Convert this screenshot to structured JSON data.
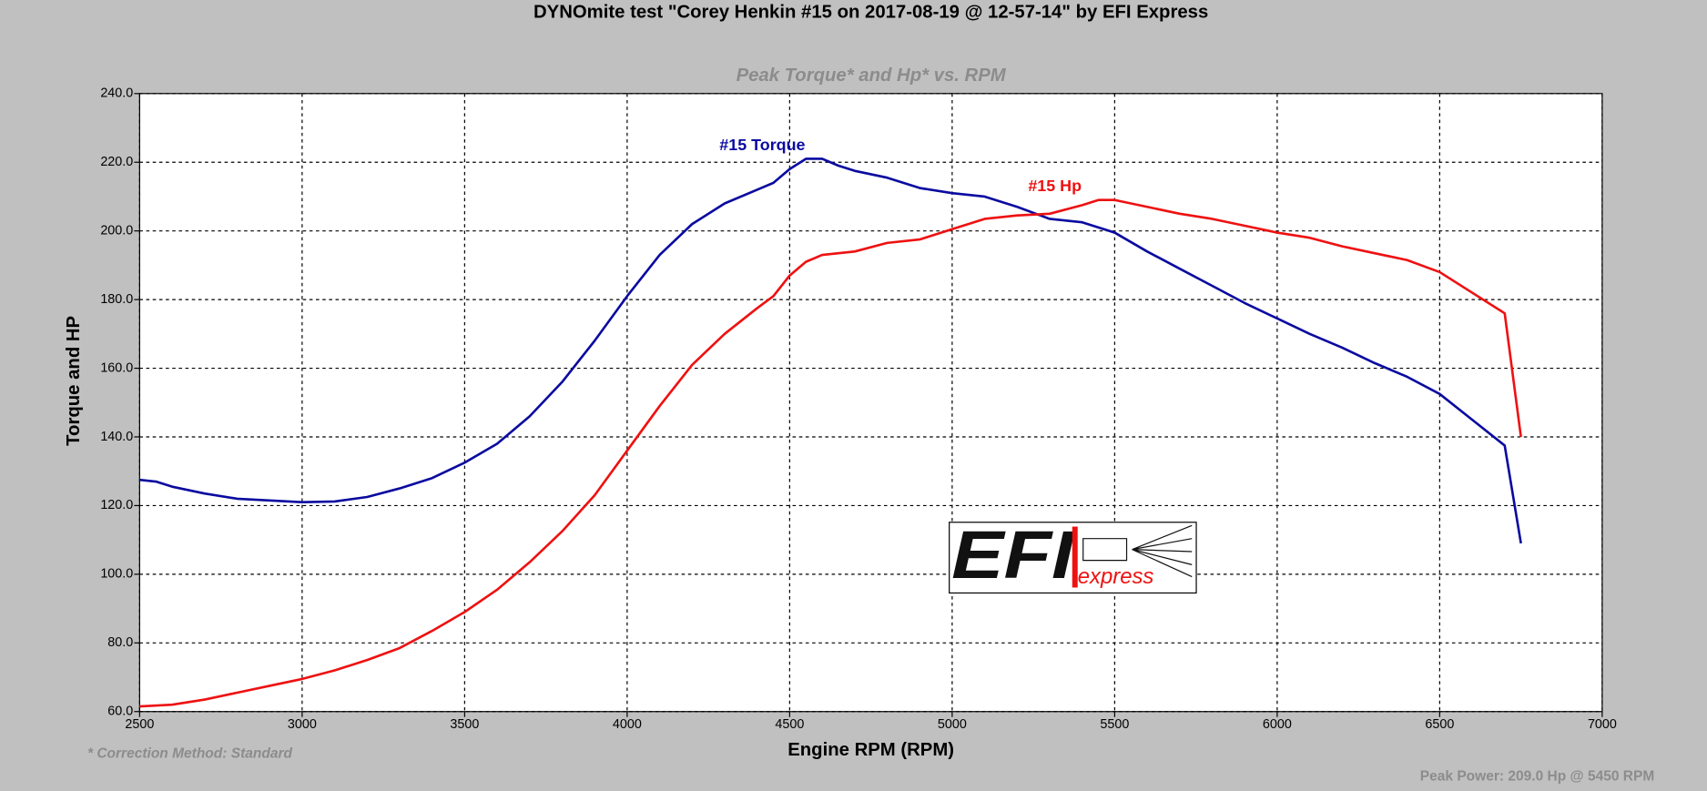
{
  "chart_data": {
    "type": "line",
    "title": "DYNOmite test \"Corey Henkin #15 on 2017-08-19 @ 12-57-14\" by EFI Express",
    "subtitle": "Peak Torque* and Hp* vs. RPM",
    "xlabel": "Engine RPM (RPM)",
    "ylabel": "Torque and HP",
    "annotations": [
      "* Correction Method: Standard",
      "Peak Power: 209.0 Hp @ 5450 RPM"
    ],
    "logo": [
      "EFI",
      "express"
    ],
    "grid": true,
    "xlim": [
      2500,
      7000
    ],
    "ylim": [
      60,
      240
    ],
    "xticks": [
      2500,
      3000,
      3500,
      4000,
      4500,
      5000,
      5500,
      6000,
      6500,
      7000
    ],
    "yticks": [
      {
        "value": 60,
        "label": "60.0"
      },
      {
        "value": 80,
        "label": "80.0"
      },
      {
        "value": 100,
        "label": "100.0"
      },
      {
        "value": 120,
        "label": "120.0"
      },
      {
        "value": 140,
        "label": "140.0"
      },
      {
        "value": 160,
        "label": "160.0"
      },
      {
        "value": 180,
        "label": "180.0"
      },
      {
        "value": 200,
        "label": "200.0"
      },
      {
        "value": 220,
        "label": "220.0"
      },
      {
        "value": 240,
        "label": "240.0"
      }
    ],
    "series": [
      {
        "name": "#15 Torque",
        "color": "#0a0aa0",
        "x": [
          2500,
          2550,
          2600,
          2700,
          2800,
          2900,
          3000,
          3100,
          3200,
          3300,
          3400,
          3500,
          3600,
          3700,
          3800,
          3900,
          4000,
          4100,
          4200,
          4300,
          4400,
          4450,
          4500,
          4550,
          4600,
          4650,
          4700,
          4800,
          4900,
          5000,
          5100,
          5200,
          5300,
          5400,
          5500,
          5600,
          5700,
          5800,
          5900,
          6000,
          6100,
          6200,
          6300,
          6400,
          6500,
          6600,
          6700,
          6750
        ],
        "values": [
          127.5,
          127,
          125.5,
          123.5,
          122,
          121.5,
          121,
          121.2,
          122.5,
          125,
          128,
          132.5,
          138,
          146,
          156,
          168,
          181,
          193,
          202,
          208,
          212,
          214,
          218,
          221,
          221,
          219,
          217.5,
          215.5,
          212.5,
          211,
          210,
          207,
          203.5,
          202.5,
          199.5,
          194,
          189,
          184,
          179,
          174.5,
          170,
          166,
          161.5,
          157.5,
          152.5,
          145,
          137.5,
          109
        ]
      },
      {
        "name": "#15 Hp",
        "color": "#ee1111",
        "x": [
          2500,
          2600,
          2700,
          2800,
          2900,
          3000,
          3100,
          3200,
          3300,
          3400,
          3500,
          3600,
          3700,
          3800,
          3900,
          4000,
          4100,
          4200,
          4300,
          4400,
          4450,
          4500,
          4550,
          4600,
          4700,
          4800,
          4900,
          5000,
          5100,
          5200,
          5300,
          5400,
          5450,
          5500,
          5600,
          5700,
          5800,
          5900,
          6000,
          6100,
          6200,
          6300,
          6400,
          6500,
          6600,
          6700,
          6750
        ],
        "values": [
          61.5,
          62,
          63.5,
          65.5,
          67.5,
          69.5,
          72,
          75,
          78.5,
          83.5,
          89,
          95.5,
          103.5,
          112.5,
          123,
          136,
          149,
          161,
          170,
          177.5,
          181,
          187,
          191,
          193,
          194,
          196.5,
          197.5,
          200.5,
          203.5,
          204.5,
          205,
          207.5,
          209,
          209,
          207,
          205,
          203.5,
          201.5,
          199.5,
          198,
          195.5,
          193.5,
          191.5,
          188,
          182,
          176,
          140
        ]
      }
    ]
  }
}
